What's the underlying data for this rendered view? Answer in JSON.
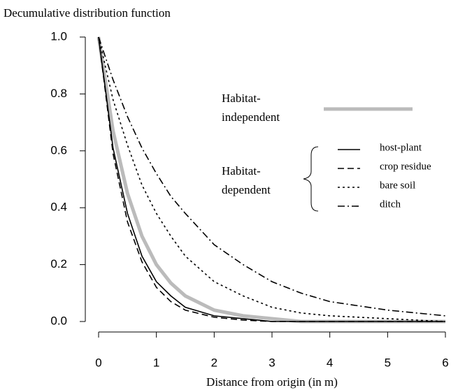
{
  "chart_data": {
    "type": "line",
    "title": "Decumulative distribution function",
    "xlabel": "Distance from origin (in m)",
    "x": [
      0,
      0.25,
      0.5,
      0.75,
      1,
      1.25,
      1.5,
      2,
      2.5,
      3,
      3.5,
      4,
      5,
      6
    ],
    "series": [
      {
        "color": "#bbbbbb",
        "dash": "solid",
        "width": 5,
        "values": [
          1,
          0.67,
          0.45,
          0.3,
          0.2,
          0.135,
          0.09,
          0.04,
          0.02,
          0.01,
          0,
          0,
          0,
          0
        ]
      },
      {
        "name": "host-plant",
        "color": "#000000",
        "dash": "solid",
        "width": 1.6,
        "values": [
          1,
          0.61,
          0.38,
          0.23,
          0.14,
          0.09,
          0.05,
          0.02,
          0.01,
          0,
          0,
          0,
          0,
          0
        ]
      },
      {
        "name": "crop residue",
        "color": "#000000",
        "dash": "dashed",
        "width": 1.6,
        "values": [
          1,
          0.59,
          0.35,
          0.21,
          0.12,
          0.07,
          0.04,
          0.015,
          0.005,
          0,
          0,
          0,
          0,
          0
        ]
      },
      {
        "name": "bare soil",
        "color": "#000000",
        "dash": "dotted",
        "width": 1.6,
        "values": [
          1,
          0.78,
          0.62,
          0.48,
          0.38,
          0.3,
          0.23,
          0.14,
          0.09,
          0.05,
          0.03,
          0.02,
          0.01,
          0
        ]
      },
      {
        "name": "ditch",
        "color": "#000000",
        "dash": "dashdot",
        "width": 1.6,
        "values": [
          1,
          0.85,
          0.72,
          0.61,
          0.52,
          0.44,
          0.38,
          0.27,
          0.2,
          0.14,
          0.1,
          0.07,
          0.04,
          0.02
        ]
      }
    ],
    "annotations": [
      [
        "Habitat-",
        "independent"
      ],
      [
        "Habitat-",
        "dependent"
      ]
    ],
    "xlim": [
      0,
      6
    ],
    "xticks": [
      0,
      1,
      2,
      3,
      4,
      5,
      6
    ],
    "ylim": [
      0,
      1
    ],
    "yticks": [
      {
        "value": 0,
        "label": "0.0"
      },
      0.2,
      0.4,
      0.6,
      0.8,
      {
        "value": 1,
        "label": "1.0"
      }
    ]
  }
}
